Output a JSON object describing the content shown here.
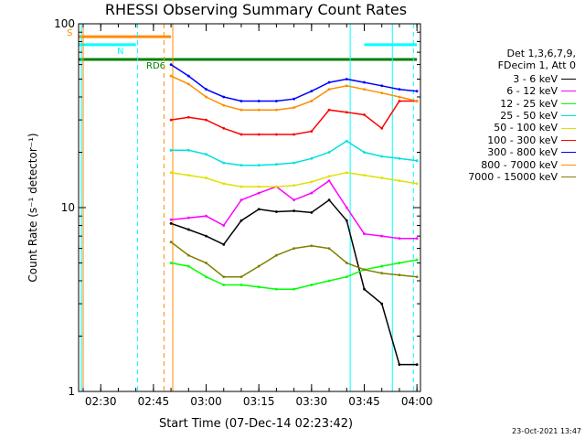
{
  "chart_data": {
    "type": "line",
    "title": "RHESSI Observing Summary Count Rates",
    "xlabel": "Start Time (07-Dec-14 02:23:42)",
    "ylabel": "Count Rate (s⁻¹ detector⁻¹)",
    "yscale": "log",
    "ylim": [
      1,
      100
    ],
    "y_ticks": [
      "1",
      "10",
      "100"
    ],
    "xlim": [
      "02:23:42",
      "04:01:00"
    ],
    "x_ticks": [
      "02:30",
      "02:45",
      "03:00",
      "03:15",
      "03:30",
      "03:45",
      "04:00"
    ],
    "legend_placement": "right",
    "legend_header": [
      "Det 1,3,6,7,9,",
      "FDecim 1, Att 0"
    ],
    "series": [
      {
        "name": "3 - 6 keV",
        "color": "#000000",
        "x": [
          "02:50",
          "02:55",
          "03:00",
          "03:05",
          "03:10",
          "03:15",
          "03:20",
          "03:25",
          "03:30",
          "03:35",
          "03:40",
          "03:45",
          "03:50",
          "03:55",
          "04:00"
        ],
        "y": [
          8.2,
          7.6,
          7.0,
          6.3,
          8.5,
          9.8,
          9.5,
          9.6,
          9.4,
          11,
          8.5,
          3.6,
          3.0,
          1.4,
          1.4
        ]
      },
      {
        "name": "6 - 12 keV",
        "color": "#ff00ff",
        "x": [
          "02:50",
          "02:55",
          "03:00",
          "03:05",
          "03:10",
          "03:15",
          "03:20",
          "03:25",
          "03:30",
          "03:35",
          "03:40",
          "03:45",
          "03:50",
          "03:55",
          "04:00"
        ],
        "y": [
          8.6,
          8.8,
          9.0,
          8.0,
          11,
          12,
          13,
          11,
          12,
          14,
          10,
          7.2,
          7.0,
          6.8,
          6.8
        ]
      },
      {
        "name": "12 - 25 keV",
        "color": "#00ff00",
        "x": [
          "02:50",
          "02:55",
          "03:00",
          "03:05",
          "03:10",
          "03:15",
          "03:20",
          "03:25",
          "03:30",
          "03:35",
          "03:40",
          "03:45",
          "03:50",
          "03:55",
          "04:00"
        ],
        "y": [
          5.0,
          4.8,
          4.2,
          3.8,
          3.8,
          3.7,
          3.6,
          3.6,
          3.8,
          4.0,
          4.2,
          4.6,
          4.8,
          5.0,
          5.2
        ]
      },
      {
        "name": "25 - 50 keV",
        "color": "#00e0e0",
        "x": [
          "02:50",
          "02:55",
          "03:00",
          "03:05",
          "03:10",
          "03:15",
          "03:20",
          "03:25",
          "03:30",
          "03:35",
          "03:40",
          "03:45",
          "03:50",
          "03:55",
          "04:00"
        ],
        "y": [
          20.5,
          20.5,
          19.5,
          17.5,
          17.0,
          17.0,
          17.2,
          17.5,
          18.5,
          20.0,
          23.0,
          20.0,
          19.0,
          18.5,
          18.0
        ]
      },
      {
        "name": "50 - 100 keV",
        "color": "#e0e000",
        "x": [
          "02:50",
          "02:55",
          "03:00",
          "03:05",
          "03:10",
          "03:15",
          "03:20",
          "03:25",
          "03:30",
          "03:35",
          "03:40",
          "03:45",
          "03:50",
          "03:55",
          "04:00"
        ],
        "y": [
          15.5,
          15.0,
          14.5,
          13.5,
          13.0,
          13.0,
          13.0,
          13.2,
          13.8,
          14.8,
          15.5,
          15.0,
          14.5,
          14.0,
          13.5
        ]
      },
      {
        "name": "100 - 300 keV",
        "color": "#ff0000",
        "x": [
          "02:50",
          "02:55",
          "03:00",
          "03:05",
          "03:10",
          "03:15",
          "03:20",
          "03:25",
          "03:30",
          "03:35",
          "03:40",
          "03:45",
          "03:50",
          "03:55",
          "04:00"
        ],
        "y": [
          30,
          31,
          30,
          27,
          25,
          25,
          25,
          25,
          26,
          34,
          33,
          32,
          27,
          38,
          38
        ]
      },
      {
        "name": "300 - 800 keV",
        "color": "#0000ff",
        "x": [
          "02:50",
          "02:55",
          "03:00",
          "03:05",
          "03:10",
          "03:15",
          "03:20",
          "03:25",
          "03:30",
          "03:35",
          "03:40",
          "03:45",
          "03:50",
          "03:55",
          "04:00"
        ],
        "y": [
          60,
          52,
          44,
          40,
          38,
          38,
          38,
          39,
          43,
          48,
          50,
          48,
          46,
          44,
          43
        ]
      },
      {
        "name": "800 - 7000 keV",
        "color": "#ff8c00",
        "x": [
          "02:50",
          "02:55",
          "03:00",
          "03:05",
          "03:10",
          "03:15",
          "03:20",
          "03:25",
          "03:30",
          "03:35",
          "03:40",
          "03:45",
          "03:50",
          "03:55",
          "04:00"
        ],
        "y": [
          52,
          47,
          40,
          36,
          34,
          34,
          34,
          35,
          38,
          44,
          46,
          44,
          42,
          40,
          38
        ]
      },
      {
        "name": "7000 - 15000 keV",
        "color": "#808000",
        "x": [
          "02:50",
          "02:55",
          "03:00",
          "03:05",
          "03:10",
          "03:15",
          "03:20",
          "03:25",
          "03:30",
          "03:35",
          "03:40",
          "03:45",
          "03:50",
          "03:55",
          "04:00"
        ],
        "y": [
          6.5,
          5.5,
          5.0,
          4.2,
          4.2,
          4.8,
          5.5,
          6.0,
          6.2,
          6.0,
          5.0,
          4.6,
          4.4,
          4.3,
          4.2
        ]
      }
    ],
    "flag_bars": [
      {
        "label": "S",
        "color": "#ff8c00",
        "y": 85,
        "x_start": "02:23:42",
        "x_end": "02:50"
      },
      {
        "label": "N",
        "color": "#00ffff",
        "y": 77,
        "x_start": "02:23:42",
        "x_end": "02:40"
      },
      {
        "label": "",
        "color": "#00ffff",
        "y": 77,
        "x_start": "03:45",
        "x_end": "04:00"
      },
      {
        "label": "RD6",
        "color": "#008000",
        "y": 64,
        "x_start": "02:23:42",
        "x_end": "04:00"
      }
    ],
    "vertical_markers": [
      {
        "x": "02:24:30",
        "color": "#00ffff",
        "style": "solid"
      },
      {
        "x": "02:25:00",
        "color": "#ff8c00",
        "style": "solid"
      },
      {
        "x": "02:40:30",
        "color": "#00ffff",
        "style": "dashed"
      },
      {
        "x": "02:48:00",
        "color": "#ff8c00",
        "style": "dashed"
      },
      {
        "x": "02:50:30",
        "color": "#ff8c00",
        "style": "solid"
      },
      {
        "x": "03:41:00",
        "color": "#00ffff",
        "style": "solid"
      },
      {
        "x": "03:53:00",
        "color": "#00ffff",
        "style": "solid"
      },
      {
        "x": "03:59:00",
        "color": "#00ffff",
        "style": "dashed"
      }
    ]
  },
  "timestamp": "23-Oct-2021 13:47"
}
